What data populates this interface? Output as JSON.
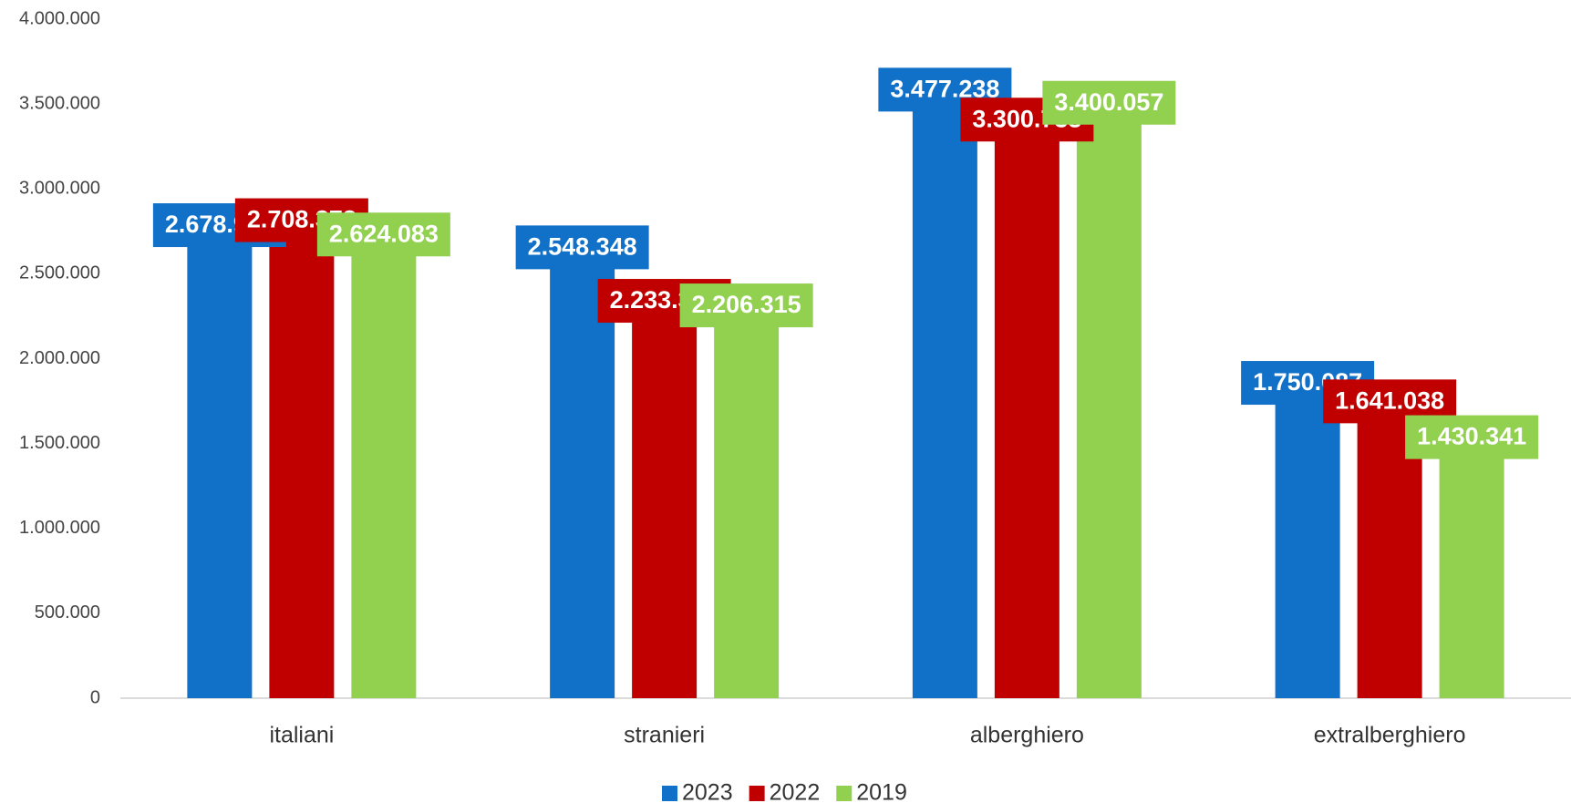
{
  "chart_data": {
    "type": "bar",
    "categories": [
      "italiani",
      "stranieri",
      "alberghiero",
      "extralberghiero"
    ],
    "series": [
      {
        "name": "2023",
        "color": "#1170c8",
        "values": [
          2678977,
          2548348,
          3477238,
          1750087
        ],
        "value_labels": [
          "2.678.977",
          "2.548.348",
          "3.477.238",
          "1.750.087"
        ]
      },
      {
        "name": "2022",
        "color": "#c00000",
        "values": [
          2708378,
          2233398,
          3300738,
          1641038
        ],
        "value_labels": [
          "2.708.378",
          "2.233.398",
          "3.300.738",
          "1.641.038"
        ]
      },
      {
        "name": "2019",
        "color": "#92d050",
        "values": [
          2624083,
          2206315,
          3400057,
          1430341
        ],
        "value_labels": [
          "2.624.083",
          "2.206.315",
          "3.400.057",
          "1.430.341"
        ]
      }
    ],
    "ylim": [
      0,
      4000000
    ],
    "yticks": [
      {
        "value": 0,
        "label": "0"
      },
      {
        "value": 500000,
        "label": "500.000"
      },
      {
        "value": 1000000,
        "label": "1.000.000"
      },
      {
        "value": 1500000,
        "label": "1.500.000"
      },
      {
        "value": 2000000,
        "label": "2.000.000"
      },
      {
        "value": 2500000,
        "label": "2.500.000"
      },
      {
        "value": 3000000,
        "label": "3.000.000"
      },
      {
        "value": 3500000,
        "label": "3.500.000"
      },
      {
        "value": 4000000,
        "label": "4.000.000"
      }
    ],
    "grid": false,
    "legend": "bottom"
  }
}
